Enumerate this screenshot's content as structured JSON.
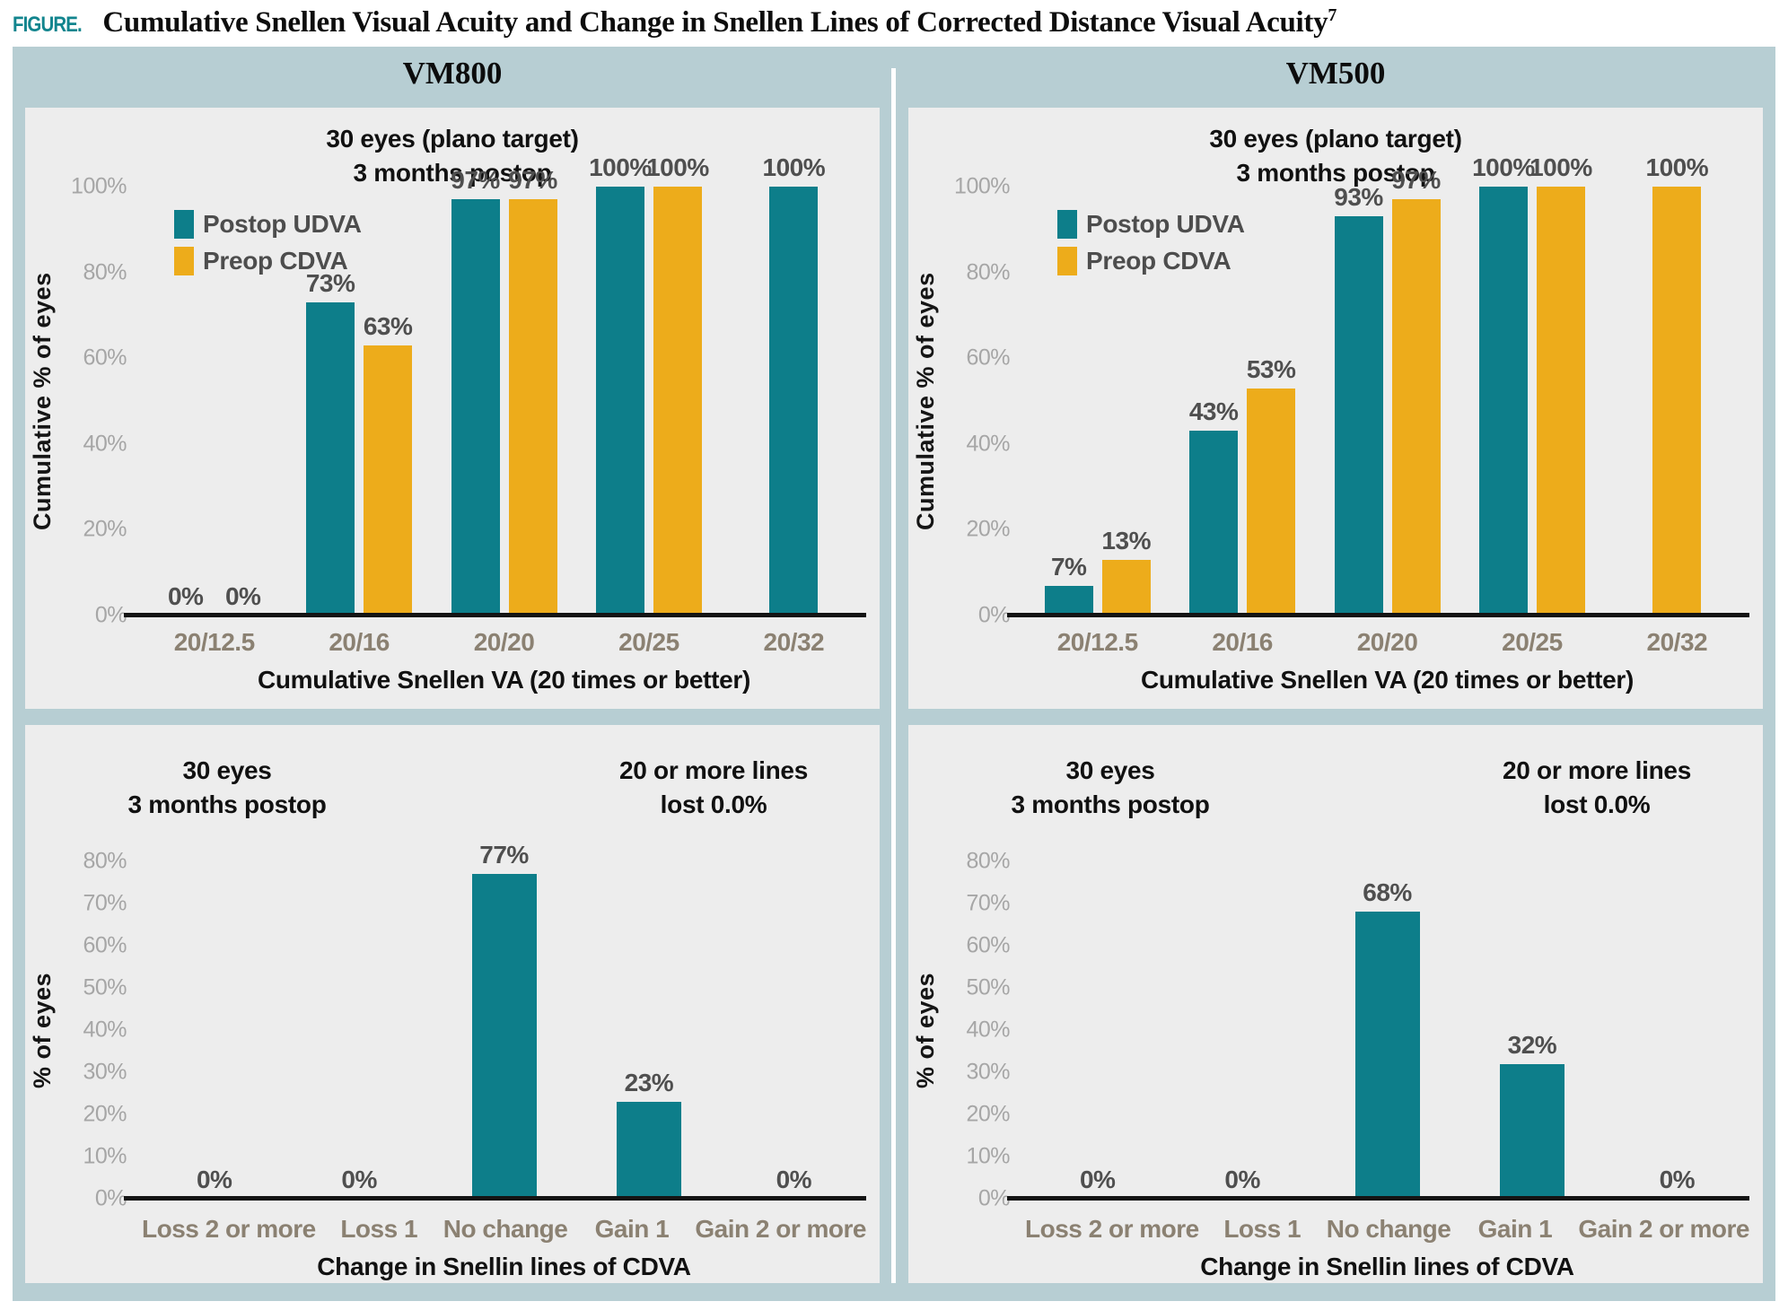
{
  "figure": {
    "label": "FIGURE.",
    "title": "Cumulative Snellen Visual Acuity and Change in Snellen Lines of Corrected Distance Visual Acuity",
    "superscript": "7"
  },
  "columns": [
    {
      "header": "VM800"
    },
    {
      "header": "VM500"
    }
  ],
  "colors": {
    "teal": "#0d7e8a",
    "gold": "#edac1b",
    "figure_label_teal": "#12858e",
    "background_band": "#b7ced3",
    "panel_background": "#ededed"
  },
  "chart_data": [
    {
      "name": "vm800-cumulative-snellen-va",
      "type": "bar",
      "subtitle_lines": [
        "30 eyes (plano target)",
        "3 months postop"
      ],
      "categories": [
        "20/12.5",
        "20/16",
        "20/20",
        "20/25",
        "20/32"
      ],
      "series": [
        {
          "key": "postop-udva",
          "name": "Postop UDVA",
          "color": "#0d7e8a",
          "values": [
            0,
            73,
            97,
            100,
            100
          ]
        },
        {
          "key": "preop-cdva",
          "name": "Preop CDVA",
          "color": "#edac1b",
          "values": [
            0,
            63,
            97,
            100,
            null
          ]
        }
      ],
      "show_legend": true,
      "legend_position": "top-left",
      "grid": false,
      "ylabel": "Cumulative % of eyes",
      "xlabel": "Cumulative Snellen VA (20 times or better)",
      "ylim": [
        0,
        100
      ],
      "ytick_step": 20
    },
    {
      "name": "vm500-cumulative-snellen-va",
      "type": "bar",
      "subtitle_lines": [
        "30 eyes (plano target)",
        "3 months postop"
      ],
      "categories": [
        "20/12.5",
        "20/16",
        "20/20",
        "20/25",
        "20/32"
      ],
      "series": [
        {
          "key": "postop-udva",
          "name": "Postop UDVA",
          "color": "#0d7e8a",
          "values": [
            7,
            43,
            93,
            100,
            null
          ]
        },
        {
          "key": "preop-cdva",
          "name": "Preop CDVA",
          "color": "#edac1b",
          "values": [
            13,
            53,
            97,
            100,
            100
          ]
        }
      ],
      "show_legend": true,
      "legend_position": "top-left",
      "grid": false,
      "ylabel": "Cumulative % of eyes",
      "xlabel": "Cumulative Snellen VA (20 times or better)",
      "ylim": [
        0,
        100
      ],
      "ytick_step": 20
    },
    {
      "name": "vm800-change-in-snellen-lines",
      "type": "bar",
      "annotation_left_lines": [
        "30 eyes",
        "3 months postop"
      ],
      "annotation_right_lines": [
        "20 or more lines",
        "lost 0.0%"
      ],
      "categories": [
        "Loss 2 or more",
        "Loss 1",
        "No change",
        "Gain 1",
        "Gain 2 or more"
      ],
      "series": [
        {
          "key": "change-cdva",
          "color": "#0d7e8a",
          "values": [
            0,
            0,
            77,
            23,
            0
          ]
        }
      ],
      "show_legend": false,
      "grid": false,
      "ylabel": "% of eyes",
      "xlabel": "Change in Snellin lines of CDVA",
      "ylim": [
        0,
        80
      ],
      "ytick_step": 10
    },
    {
      "name": "vm500-change-in-snellen-lines",
      "type": "bar",
      "annotation_left_lines": [
        "30 eyes",
        "3 months postop"
      ],
      "annotation_right_lines": [
        "20 or more lines",
        "lost 0.0%"
      ],
      "categories": [
        "Loss 2 or more",
        "Loss 1",
        "No change",
        "Gain 1",
        "Gain 2 or more"
      ],
      "series": [
        {
          "key": "change-cdva",
          "color": "#0d7e8a",
          "values": [
            0,
            0,
            68,
            32,
            0
          ]
        }
      ],
      "show_legend": false,
      "grid": false,
      "ylabel": "% of eyes",
      "xlabel": "Change in Snellin lines of CDVA",
      "ylim": [
        0,
        80
      ],
      "ytick_step": 10
    }
  ]
}
